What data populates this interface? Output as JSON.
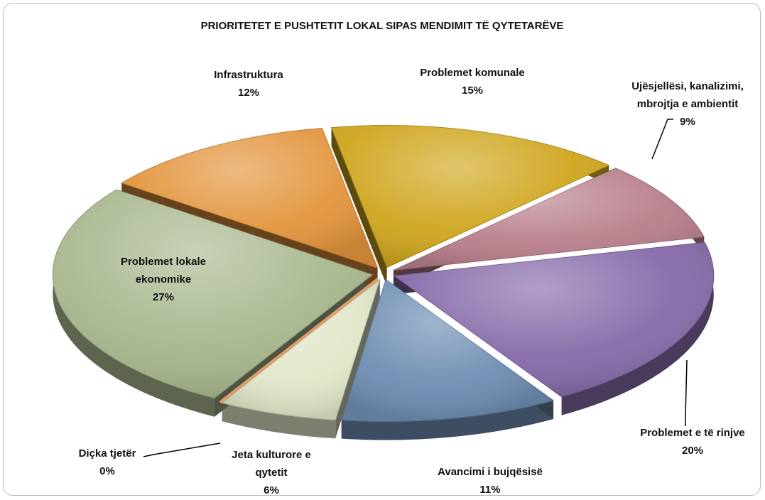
{
  "chart_data": {
    "type": "pie",
    "title": "PRIORITETET E PUSHTETIT LOKAL SIPAS MENDIMIT TË QYTETARËVE",
    "slices": [
      {
        "label_lines": [
          "Problemet komunale"
        ],
        "pct": "15%",
        "value": 15,
        "color": "#cfa61e"
      },
      {
        "label_lines": [
          "Ujësjellësi, kanalizimi,",
          "mbrojtja e ambientit"
        ],
        "pct": "9%",
        "value": 9,
        "color": "#b87f8b"
      },
      {
        "label_lines": [
          "Problemet e të rinjve"
        ],
        "pct": "20%",
        "value": 20,
        "color": "#866ba9"
      },
      {
        "label_lines": [
          "Avancimi i bujqësisë"
        ],
        "pct": "11%",
        "value": 11,
        "color": "#6e8eb2"
      },
      {
        "label_lines": [
          "Jeta kulturore e",
          "qytetit"
        ],
        "pct": "6%",
        "value": 6,
        "color": "#dfe7c8"
      },
      {
        "label_lines": [
          "Diçka tjetër"
        ],
        "pct": "0%",
        "value": 0,
        "color": "#e19a6a"
      },
      {
        "label_lines": [
          "Problemet lokale",
          "ekonomike"
        ],
        "pct": "27%",
        "value": 27,
        "color": "#a9b88f"
      },
      {
        "label_lines": [
          "Infrastruktura"
        ],
        "pct": "12%",
        "value": 12,
        "color": "#e3953d"
      }
    ]
  }
}
